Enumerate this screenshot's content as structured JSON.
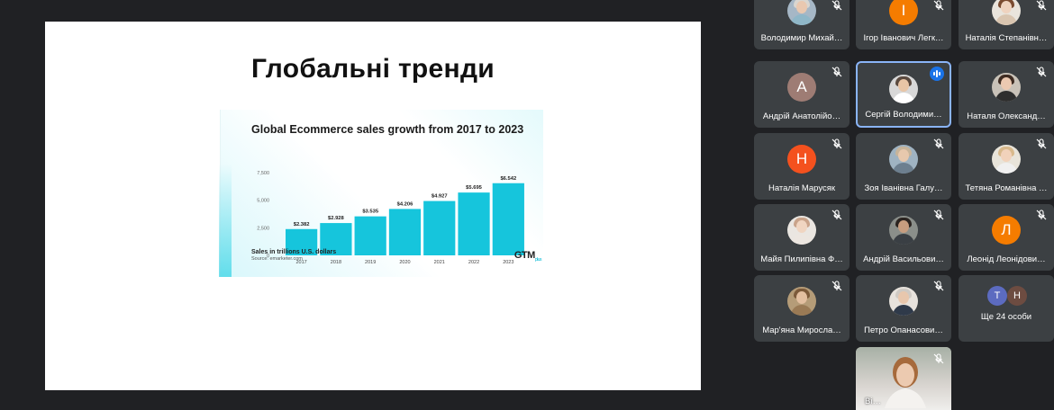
{
  "slide": {
    "title": "Глобальні тренди",
    "chart_title": "Global Ecommerce sales growth from 2017 to 2023",
    "footnote": "Sales in trillions U.S. dollars",
    "source": "Source: emarketer.com",
    "logo_text": "GTM",
    "logo_sub": "plus"
  },
  "chart_data": {
    "type": "bar",
    "title": "Global Ecommerce sales growth from 2017 to 2023",
    "categories": [
      "2017",
      "2018",
      "2019",
      "2020",
      "2021",
      "2022",
      "2023"
    ],
    "values": [
      2.382,
      2.928,
      3.535,
      4.206,
      4.927,
      5.695,
      6.542
    ],
    "value_labels": [
      "$2.382",
      "$2.928",
      "$3.535",
      "$4.206",
      "$4.927",
      "$5.695",
      "$6.542"
    ],
    "y_ticks": [
      0,
      2.5,
      5,
      7.5
    ],
    "y_tick_labels": [
      "0",
      "2,500",
      "5,000",
      "7,500"
    ],
    "ylim": [
      0,
      7.5
    ],
    "bar_color": "#16c5dc",
    "xlabel": "",
    "ylabel": "Sales in trillions U.S. dollars"
  },
  "participants": [
    {
      "name": "Володимир Михай…",
      "type": "photo",
      "skin": "#e9c8b0",
      "hair": "#d9d6d0",
      "shirt": "#8fb7c8",
      "bg": "#a6b7c6"
    },
    {
      "name": "Ігор Іванович Легк…",
      "type": "letter",
      "letter": "І",
      "color": "#f57c00"
    },
    {
      "name": "Наталія Степанівн…",
      "type": "photo",
      "skin": "#efd3bf",
      "hair": "#7a4b30",
      "shirt": "#d9c5b0",
      "bg": "#e9e4dc"
    },
    {
      "name": "Андрій Анатолійо…",
      "type": "letter",
      "letter": "А",
      "color": "#9e7c74"
    },
    {
      "name": "Сергій Володими…",
      "type": "photo",
      "skin": "#e8c5a6",
      "hair": "#5b4a3f",
      "shirt": "#ffffff",
      "bg": "#d8d8d8",
      "active": true
    },
    {
      "name": "Наталя Олександ…",
      "type": "photo",
      "skin": "#ecc9b1",
      "hair": "#3f2c22",
      "shirt": "#2e2e2e",
      "bg": "#c9c2b8"
    },
    {
      "name": "Наталія Марусяк",
      "type": "letter",
      "letter": "Н",
      "color": "#f4511e"
    },
    {
      "name": "Зоя Іванівна Галу…",
      "type": "photo",
      "skin": "#e7c8ad",
      "hair": "#c7b49a",
      "shirt": "#6d7f8f",
      "bg": "#9fb3c2"
    },
    {
      "name": "Тетяна Романівна …",
      "type": "photo",
      "skin": "#f1d2bb",
      "hair": "#d8b98c",
      "shirt": "#f0f0f0",
      "bg": "#e8e4da"
    },
    {
      "name": "Майя Пилипівна Ф…",
      "type": "photo",
      "skin": "#f0d5c1",
      "hair": "#c9a38a",
      "shirt": "#ece6e0",
      "bg": "#eae6e1"
    },
    {
      "name": "Андрій Васильови…",
      "type": "photo",
      "skin": "#c79d7f",
      "hair": "#2b2420",
      "shirt": "#3a3f44",
      "bg": "#8b8f8a"
    },
    {
      "name": "Леонід Леонідови…",
      "type": "letter",
      "letter": "Л",
      "color": "#f57c00"
    },
    {
      "name": "Мар'яна Миросла…",
      "type": "photo",
      "skin": "#e3bfa0",
      "hair": "#7c5a3a",
      "shirt": "#9a7a55",
      "bg": "#b59c78"
    },
    {
      "name": "Петро Опанасови…",
      "type": "photo",
      "skin": "#e8c7ad",
      "hair": "#cfcac4",
      "shirt": "#2f3a4a",
      "bg": "#e7e2dc"
    }
  ],
  "more": {
    "label": "Ще 24 особи",
    "initials": [
      "Т",
      "Н"
    ],
    "colors": [
      "#5c6bc0",
      "#6d4c41"
    ]
  },
  "video_tile": {
    "name": "Ві…"
  },
  "icons": {
    "mute": "mic-off-icon",
    "speaking": "audio-level-icon"
  }
}
